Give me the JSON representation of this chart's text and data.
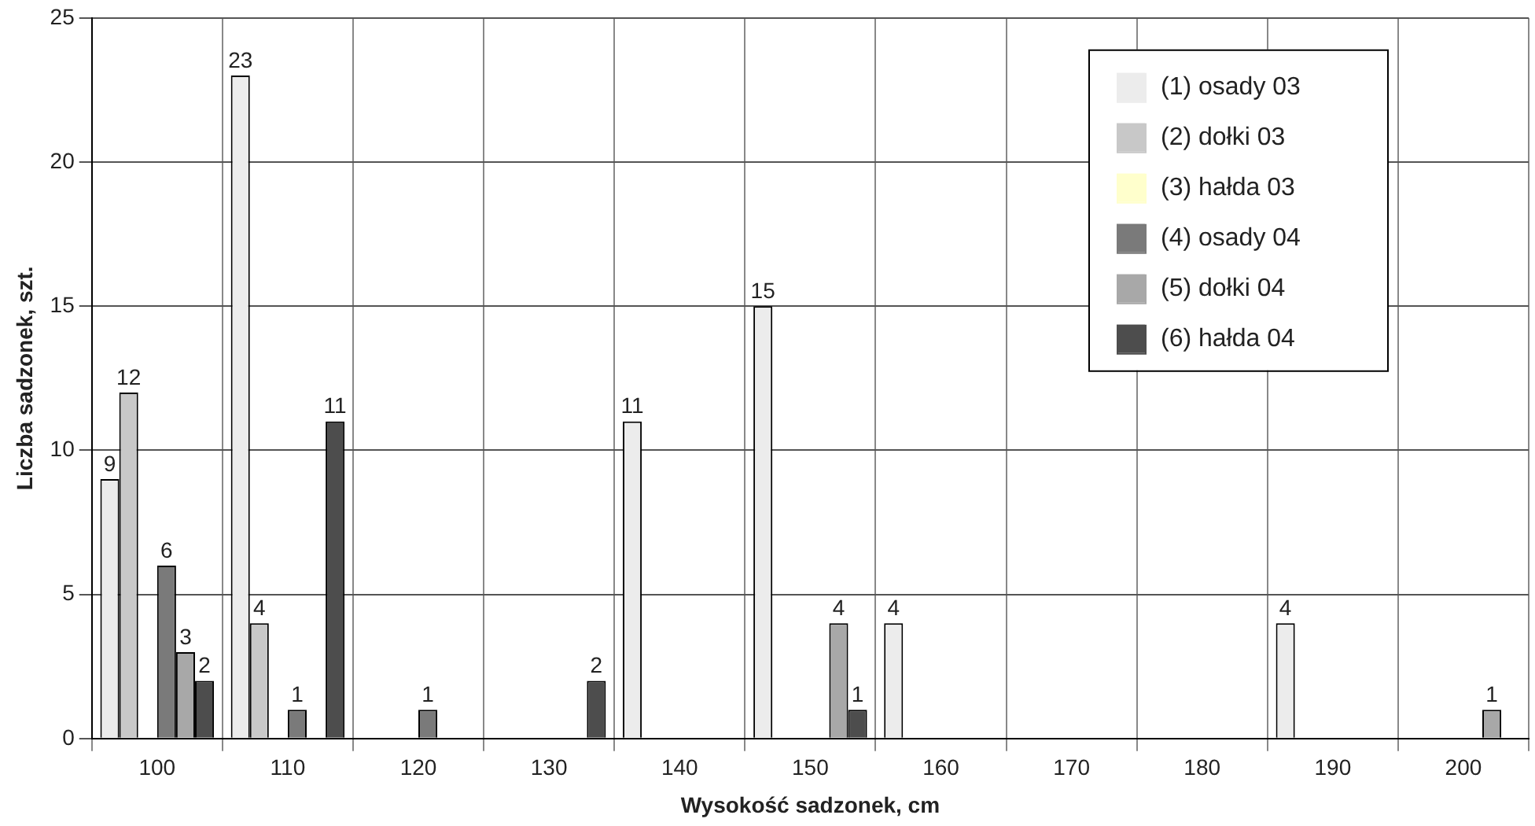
{
  "chart_data": {
    "type": "bar",
    "xlabel": "Wysokość sadzonek, cm",
    "ylabel": "Liczba sadzonek, szt.",
    "categories": [
      "100",
      "110",
      "120",
      "130",
      "140",
      "150",
      "160",
      "170",
      "180",
      "190",
      "200"
    ],
    "series": [
      {
        "name": "(1) osady 03",
        "color": "#ececec",
        "values": [
          9,
          23,
          null,
          null,
          11,
          15,
          4,
          null,
          null,
          4,
          null
        ]
      },
      {
        "name": "(2) dołki 03",
        "color": "#c8c8c8",
        "values": [
          12,
          4,
          null,
          null,
          null,
          null,
          null,
          null,
          null,
          null,
          null
        ]
      },
      {
        "name": "(3) hałda 03",
        "color": "#ffffcc",
        "values": [
          null,
          null,
          null,
          null,
          null,
          null,
          null,
          null,
          null,
          null,
          null
        ]
      },
      {
        "name": "(4) osady 04",
        "color": "#7a7a7a",
        "values": [
          6,
          1,
          1,
          null,
          null,
          null,
          null,
          null,
          null,
          null,
          null
        ]
      },
      {
        "name": "(5) dołki 04",
        "color": "#a8a8a8",
        "values": [
          3,
          null,
          null,
          null,
          null,
          4,
          null,
          null,
          null,
          null,
          1
        ]
      },
      {
        "name": "(6) hałda 04",
        "color": "#4d4d4d",
        "values": [
          2,
          11,
          null,
          2,
          null,
          1,
          null,
          null,
          null,
          null,
          null
        ]
      }
    ],
    "ylim": [
      0,
      25
    ],
    "yticks": [
      0,
      5,
      10,
      15,
      20,
      25
    ],
    "grid": true,
    "legend": "top right",
    "data_labels": true
  }
}
